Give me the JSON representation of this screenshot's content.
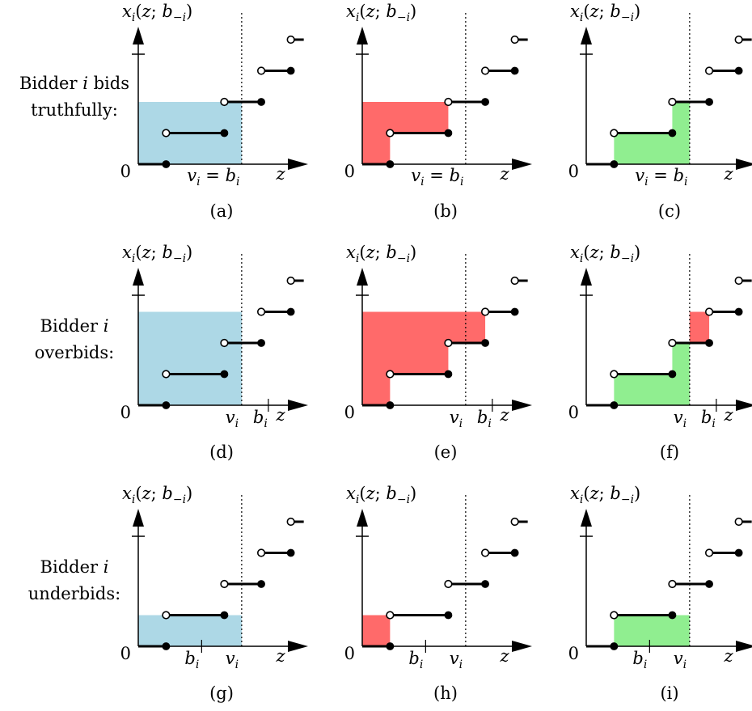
{
  "figure": {
    "row_labels": [
      [
        "Bidder i bids",
        "truthfully:"
      ],
      [
        "Bidder i",
        "overbids:"
      ],
      [
        "Bidder i",
        "underbids:"
      ]
    ],
    "panel_labels": [
      "(a)",
      "(b)",
      "(c)",
      "(d)",
      "(e)",
      "(f)",
      "(g)",
      "(h)",
      "(i)"
    ],
    "y_axis_label": "x_i(z; b_{-i})",
    "origin_label": "0",
    "x_axis_label": "z",
    "tick_labels": {
      "truthful": "v_i = b_i",
      "v": "v_i",
      "b": "b_i"
    },
    "colors": {
      "blue": "#add8e6",
      "red": "#ff6a6a",
      "green": "#90ee90",
      "line": "#000000"
    },
    "allocation_rule": {
      "thresholds": [
        0.2,
        0.6,
        0.8,
        1.0
      ],
      "levels": [
        0.0,
        0.25,
        0.5,
        0.75,
        1.0
      ]
    },
    "panels": [
      {
        "id": "a",
        "row": "truthful",
        "shading": "blue-area-under-level-at-v"
      },
      {
        "id": "b",
        "row": "truthful",
        "shading": "red-area-left-of-curve"
      },
      {
        "id": "c",
        "row": "truthful",
        "shading": "green-area-under-curve"
      },
      {
        "id": "d",
        "row": "overbid",
        "shading": "blue-area-under-level-at-v"
      },
      {
        "id": "e",
        "row": "overbid",
        "shading": "red-area-left-of-curve"
      },
      {
        "id": "f",
        "row": "overbid",
        "shading": "green-area-under-curve-plus-red-excess"
      },
      {
        "id": "g",
        "row": "underbid",
        "shading": "blue-area-under-level-at-b"
      },
      {
        "id": "h",
        "row": "underbid",
        "shading": "red-area-left-of-curve"
      },
      {
        "id": "i",
        "row": "underbid",
        "shading": "green-area-under-curve"
      }
    ]
  }
}
